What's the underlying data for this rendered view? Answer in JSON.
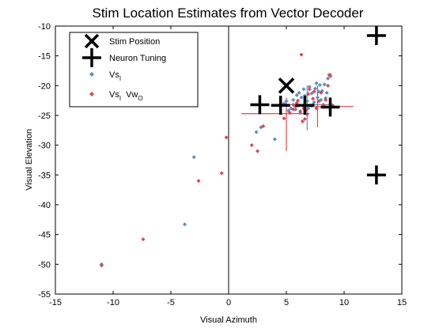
{
  "chart_data": {
    "type": "scatter",
    "title": "Stim Location Estimates from Vector Decoder",
    "xlabel": "Visual Azimuth",
    "ylabel": "Visual Elevation",
    "xlim": [
      -15,
      15
    ],
    "ylim": [
      -55,
      -10
    ],
    "xticks": [
      -15,
      -10,
      -5,
      0,
      5,
      10,
      15
    ],
    "yticks": [
      -55,
      -50,
      -45,
      -40,
      -35,
      -30,
      -25,
      -20,
      -15,
      -10
    ],
    "vertical_line_x": 0,
    "legend": {
      "placement": "top-left",
      "entries": [
        {
          "label": "Stim Position",
          "marker": "x"
        },
        {
          "label": "Neuron Tuning",
          "marker": "plus"
        },
        {
          "label": "Vs",
          "sub": "I",
          "marker": "dot",
          "color": "#5a8fc4"
        },
        {
          "label": "Vs",
          "sub": "I",
          "mid": "Vw",
          "sub2": "O",
          "marker": "dot",
          "color": "#e0474c"
        }
      ]
    },
    "stim_position": [
      [
        5.0,
        -20.0
      ]
    ],
    "neuron_tuning": [
      [
        2.7,
        -23.2
      ],
      [
        4.5,
        -23.3
      ],
      [
        6.6,
        -23.3
      ],
      [
        8.8,
        -23.6
      ],
      [
        12.8,
        -11.6
      ],
      [
        12.8,
        -35.0
      ]
    ],
    "series": [
      {
        "name": "Vs_I",
        "color": "#5a8fc4",
        "points": [
          [
            -11.0,
            -50.0
          ],
          [
            -3.8,
            -43.3
          ],
          [
            -3.0,
            -32.0
          ],
          [
            2.4,
            -27.8
          ],
          [
            2.8,
            -27.0
          ],
          [
            4.0,
            -29.0
          ],
          [
            5.0,
            -22.6
          ],
          [
            5.4,
            -23.8
          ],
          [
            5.6,
            -22.4
          ],
          [
            5.9,
            -21.6
          ],
          [
            6.1,
            -21.2
          ],
          [
            6.3,
            -22.0
          ],
          [
            6.5,
            -20.6
          ],
          [
            6.6,
            -21.7
          ],
          [
            6.8,
            -22.6
          ],
          [
            7.0,
            -20.2
          ],
          [
            7.2,
            -21.3
          ],
          [
            7.4,
            -22.8
          ],
          [
            7.5,
            -20.5
          ],
          [
            7.6,
            -19.6
          ],
          [
            7.7,
            -22.0
          ],
          [
            7.8,
            -21.0
          ],
          [
            7.9,
            -19.9
          ],
          [
            8.0,
            -22.4
          ],
          [
            8.1,
            -20.9
          ],
          [
            8.2,
            -23.3
          ],
          [
            8.3,
            -19.8
          ],
          [
            8.4,
            -22.1
          ],
          [
            8.5,
            -21.2
          ],
          [
            8.6,
            -18.8
          ],
          [
            8.8,
            -18.2
          ],
          [
            6.0,
            -23.4
          ],
          [
            6.9,
            -23.8
          ],
          [
            7.3,
            -23.2
          ],
          [
            5.2,
            -24.2
          ],
          [
            4.8,
            -23.0
          ],
          [
            6.2,
            -24.6
          ],
          [
            5.8,
            -24.0
          ]
        ]
      },
      {
        "name": "Vs_I Vw_O",
        "color": "#e0474c",
        "points": [
          [
            -11.0,
            -50.2
          ],
          [
            -7.4,
            -45.8
          ],
          [
            -2.6,
            -36.0
          ],
          [
            -0.6,
            -34.7
          ],
          [
            -0.2,
            -28.7
          ],
          [
            2.0,
            -30.0
          ],
          [
            2.5,
            -31.0
          ],
          [
            3.0,
            -26.8
          ],
          [
            4.8,
            -25.5
          ],
          [
            5.3,
            -24.6
          ],
          [
            5.6,
            -24.0
          ],
          [
            5.8,
            -23.5
          ],
          [
            6.0,
            -22.5
          ],
          [
            6.2,
            -24.3
          ],
          [
            6.3,
            -14.8
          ],
          [
            6.4,
            -26.0
          ],
          [
            6.5,
            -23.8
          ],
          [
            6.6,
            -25.6
          ],
          [
            6.8,
            -24.8
          ],
          [
            6.9,
            -21.4
          ],
          [
            7.0,
            -20.6
          ],
          [
            7.2,
            -23.4
          ],
          [
            7.3,
            -22.2
          ],
          [
            7.4,
            -21.0
          ],
          [
            7.6,
            -23.8
          ],
          [
            7.8,
            -22.6
          ],
          [
            8.0,
            -21.2
          ],
          [
            8.2,
            -23.2
          ],
          [
            8.4,
            -22.4
          ],
          [
            8.6,
            -20.0
          ],
          [
            8.7,
            -18.2
          ],
          [
            8.8,
            -18.4
          ],
          [
            9.0,
            -23.3
          ],
          [
            5.6,
            -23.2
          ],
          [
            5.9,
            -22.9
          ],
          [
            6.7,
            -24.1
          ]
        ]
      }
    ],
    "error_bars": [
      {
        "color": "#5a8fc4",
        "center": [
          6.8,
          -23.2
        ],
        "x_range": [
          5.0,
          8.8
        ],
        "y_range": [
          -27.5,
          -20.0
        ]
      },
      {
        "color": "#e0474c",
        "center": [
          7.7,
          -23.5
        ],
        "x_range": [
          6.4,
          10.8
        ],
        "y_range": [
          -27.0,
          -20.0
        ]
      },
      {
        "color": "#e0474c",
        "center": [
          5.0,
          -24.7
        ],
        "x_range": [
          1.1,
          7.0
        ],
        "y_range": [
          -31.0,
          -22.0
        ]
      }
    ]
  }
}
